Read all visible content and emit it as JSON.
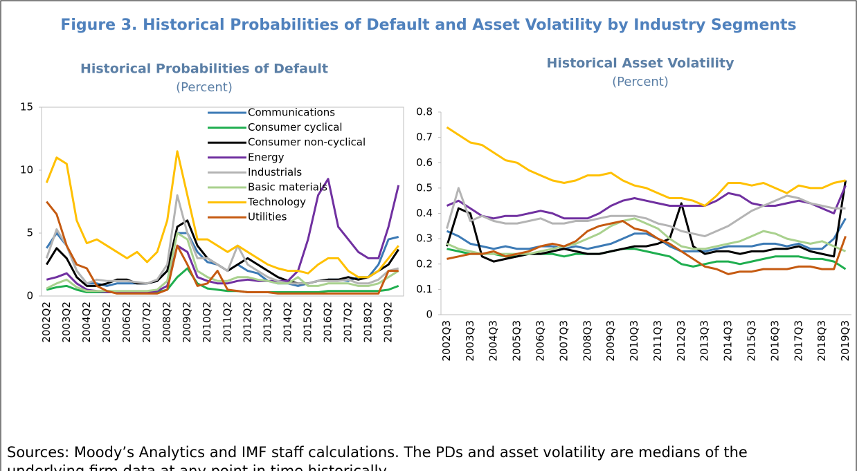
{
  "figure_title": "Figure 3. Historical Probabilities of Default and Asset Volatility by Industry Segments",
  "source": [
    "Sources: Moody’s Analytics and IMF staff calculations. The PDs and asset volatility are medians of the",
    "underlying firm data at any point in time historically."
  ],
  "chart_data": [
    {
      "type": "line",
      "title": "Historical Probabilities of Default",
      "subtitle": "(Percent)",
      "categories": [
        "2002Q2",
        null,
        "2003Q2",
        null,
        "2004Q2",
        null,
        "2005Q2",
        null,
        "2006Q2",
        null,
        "2007Q2",
        null,
        "2008Q2",
        null,
        "2009Q2",
        null,
        "2010Q2",
        null,
        "2011Q2",
        null,
        "2012Q2",
        null,
        "2013Q2",
        null,
        "2014Q2",
        null,
        "2015Q2",
        null,
        "2016Q2",
        null,
        "2017Q2",
        null,
        "2018Q2",
        null,
        "2019Q2",
        null
      ],
      "ylim": [
        0,
        15
      ],
      "yticks": [
        0,
        5,
        10,
        15
      ],
      "legend": "top",
      "frame": true,
      "series": [
        {
          "name": "Communications",
          "color": "#3c7ab5",
          "values": [
            3.8,
            5,
            4,
            2,
            1,
            1,
            0.8,
            1,
            1,
            1,
            1,
            1.2,
            2,
            5,
            5,
            3.5,
            2.7,
            2.5,
            2,
            2.5,
            2,
            1.8,
            1.2,
            1,
            1,
            0.8,
            1,
            1.2,
            1.3,
            1.3,
            1.2,
            1.5,
            1.5,
            2.5,
            4.5,
            4.7
          ]
        },
        {
          "name": "Consumer cyclical",
          "color": "#1fae4f",
          "values": [
            0.5,
            0.7,
            0.8,
            0.5,
            0.3,
            0.3,
            0.3,
            0.3,
            0.3,
            0.3,
            0.3,
            0.3,
            0.5,
            1.5,
            2.2,
            1,
            0.6,
            0.5,
            0.4,
            0.4,
            0.3,
            0.3,
            0.3,
            0.3,
            0.3,
            0.3,
            0.3,
            0.3,
            0.4,
            0.4,
            0.4,
            0.4,
            0.4,
            0.4,
            0.5,
            0.8
          ]
        },
        {
          "name": "Consumer non-cyclical",
          "color": "#000000",
          "values": [
            2.5,
            3.8,
            3,
            1.5,
            0.8,
            0.8,
            1,
            1.3,
            1.3,
            1,
            1,
            1.2,
            2,
            5.5,
            6,
            4,
            3,
            2.5,
            2,
            2.5,
            3,
            2.5,
            2,
            1.5,
            1.2,
            1,
            1,
            1.2,
            1.3,
            1.3,
            1.5,
            1.3,
            1.5,
            2,
            2.5,
            3.7
          ]
        },
        {
          "name": "Energy",
          "color": "#7030a0",
          "values": [
            1.3,
            1.5,
            1.8,
            1,
            0.5,
            0.4,
            0.3,
            0.3,
            0.3,
            0.3,
            0.3,
            0.4,
            0.8,
            4,
            3.5,
            1.5,
            1.2,
            1,
            1,
            1.2,
            1.3,
            1.2,
            1.2,
            1.2,
            1.2,
            2,
            4.5,
            8,
            9.3,
            5.5,
            4.5,
            3.5,
            3,
            3,
            5.5,
            8.8
          ]
        },
        {
          "name": "Industrials",
          "color": "#b4b4b4",
          "values": [
            3,
            5.3,
            4,
            2,
            1,
            1.3,
            1.2,
            1.2,
            1.2,
            1.1,
            1,
            1.3,
            2.5,
            8,
            5,
            3,
            3,
            2.5,
            2,
            4,
            2.5,
            2,
            1.5,
            1.2,
            1,
            1,
            1,
            1.2,
            1.2,
            1.2,
            1.3,
            1,
            1,
            1.3,
            2,
            2.2
          ]
        },
        {
          "name": "Basic materials",
          "color": "#a9d18e",
          "values": [
            0.6,
            1,
            1.3,
            0.7,
            0.4,
            0.4,
            0.4,
            0.4,
            0.4,
            0.4,
            0.4,
            0.5,
            1.2,
            5,
            4.5,
            2,
            1.5,
            1.2,
            1.2,
            1.5,
            1.5,
            1.3,
            1.2,
            1,
            1,
            1.5,
            0.8,
            0.8,
            1,
            1,
            1,
            0.8,
            0.8,
            1,
            1.5,
            2
          ]
        },
        {
          "name": "Technology",
          "color": "#ffc000",
          "values": [
            9,
            11,
            10.5,
            6,
            4.2,
            4.5,
            4,
            3.5,
            3,
            3.5,
            2.7,
            3.5,
            6,
            11.5,
            8,
            4.5,
            4.5,
            4,
            3.5,
            4,
            3.5,
            3,
            2.5,
            2.2,
            2,
            2,
            1.8,
            2.5,
            3,
            3,
            2,
            1.5,
            1.5,
            2,
            3,
            4
          ]
        },
        {
          "name": "Utilities",
          "color": "#c55a11",
          "values": [
            7.5,
            6.5,
            4,
            2.5,
            2.2,
            0.8,
            0.4,
            0.2,
            0.2,
            0.2,
            0.2,
            0.2,
            0.5,
            4,
            2.5,
            0.8,
            1,
            2,
            0.5,
            0.4,
            0.3,
            0.3,
            0.3,
            0.2,
            0.2,
            0.2,
            0.2,
            0.2,
            0.2,
            0.2,
            0.2,
            0.2,
            0.2,
            0.2,
            2,
            2
          ]
        }
      ]
    },
    {
      "type": "line",
      "title": "Historical Asset Volatility",
      "subtitle": "(Percent)",
      "categories": [
        "2002Q3",
        null,
        "2003Q3",
        null,
        "2004Q3",
        null,
        "2005Q3",
        null,
        "2006Q3",
        null,
        "2007Q3",
        null,
        "2008Q3",
        null,
        "2009Q3",
        null,
        "2010Q3",
        null,
        "2011Q3",
        null,
        "2012Q3",
        null,
        "2013Q3",
        null,
        "2014Q3",
        null,
        "2015Q3",
        null,
        "2016Q3",
        null,
        "2017Q3",
        null,
        "2018Q3",
        null,
        "2019Q3"
      ],
      "ylim": [
        0,
        0.8
      ],
      "yticks": [
        0,
        0.1,
        0.2,
        0.3,
        0.4,
        0.5,
        0.6,
        0.7,
        0.8
      ],
      "frame": false,
      "series": [
        {
          "color": "#3c7ab5",
          "values": [
            0.33,
            0.31,
            0.28,
            0.27,
            0.26,
            0.27,
            0.26,
            0.26,
            0.27,
            0.27,
            0.26,
            0.27,
            0.26,
            0.27,
            0.28,
            0.3,
            0.32,
            0.32,
            0.3,
            0.27,
            0.25,
            0.25,
            0.25,
            0.26,
            0.27,
            0.27,
            0.27,
            0.28,
            0.28,
            0.27,
            0.28,
            0.26,
            0.26,
            0.3,
            0.38
          ]
        },
        {
          "color": "#1fae4f",
          "values": [
            0.26,
            0.25,
            0.24,
            0.24,
            0.24,
            0.23,
            0.23,
            0.24,
            0.24,
            0.24,
            0.23,
            0.24,
            0.24,
            0.24,
            0.25,
            0.26,
            0.26,
            0.25,
            0.24,
            0.23,
            0.2,
            0.19,
            0.2,
            0.21,
            0.21,
            0.2,
            0.21,
            0.22,
            0.23,
            0.23,
            0.23,
            0.22,
            0.22,
            0.21,
            0.18
          ]
        },
        {
          "color": "#000000",
          "values": [
            0.27,
            0.42,
            0.4,
            0.23,
            0.21,
            0.22,
            0.23,
            0.24,
            0.24,
            0.25,
            0.26,
            0.25,
            0.24,
            0.24,
            0.25,
            0.26,
            0.27,
            0.27,
            0.28,
            0.3,
            0.44,
            0.27,
            0.24,
            0.25,
            0.25,
            0.24,
            0.25,
            0.25,
            0.26,
            0.26,
            0.27,
            0.25,
            0.24,
            0.23,
            0.53
          ]
        },
        {
          "color": "#7030a0",
          "values": [
            0.43,
            0.45,
            0.42,
            0.39,
            0.38,
            0.39,
            0.39,
            0.4,
            0.41,
            0.4,
            0.38,
            0.38,
            0.38,
            0.4,
            0.43,
            0.45,
            0.46,
            0.45,
            0.44,
            0.43,
            0.43,
            0.43,
            0.43,
            0.45,
            0.48,
            0.47,
            0.44,
            0.43,
            0.43,
            0.44,
            0.45,
            0.44,
            0.42,
            0.4,
            0.51
          ]
        },
        {
          "color": "#b4b4b4",
          "values": [
            0.34,
            0.5,
            0.37,
            0.39,
            0.37,
            0.36,
            0.36,
            0.37,
            0.38,
            0.36,
            0.36,
            0.37,
            0.37,
            0.38,
            0.39,
            0.39,
            0.39,
            0.38,
            0.36,
            0.35,
            0.33,
            0.32,
            0.31,
            0.33,
            0.35,
            0.38,
            0.41,
            0.43,
            0.45,
            0.47,
            0.46,
            0.44,
            0.43,
            0.42,
            0.42
          ]
        },
        {
          "color": "#a9d18e",
          "values": [
            0.28,
            0.26,
            0.25,
            0.24,
            0.24,
            0.24,
            0.24,
            0.24,
            0.25,
            0.26,
            0.27,
            0.28,
            0.3,
            0.32,
            0.35,
            0.37,
            0.38,
            0.36,
            0.34,
            0.3,
            0.27,
            0.26,
            0.26,
            0.27,
            0.28,
            0.29,
            0.31,
            0.33,
            0.32,
            0.3,
            0.29,
            0.28,
            0.29,
            0.27,
            0.25
          ]
        },
        {
          "color": "#ffc000",
          "values": [
            0.74,
            0.71,
            0.68,
            0.67,
            0.64,
            0.61,
            0.6,
            0.57,
            0.55,
            0.53,
            0.52,
            0.53,
            0.55,
            0.55,
            0.56,
            0.53,
            0.51,
            0.5,
            0.48,
            0.46,
            0.46,
            0.45,
            0.43,
            0.47,
            0.52,
            0.52,
            0.51,
            0.52,
            0.5,
            0.48,
            0.51,
            0.5,
            0.5,
            0.52,
            0.53
          ]
        },
        {
          "color": "#c55a11",
          "values": [
            0.22,
            0.23,
            0.24,
            0.24,
            0.25,
            0.23,
            0.24,
            0.25,
            0.27,
            0.28,
            0.27,
            0.29,
            0.33,
            0.35,
            0.36,
            0.37,
            0.34,
            0.33,
            0.3,
            0.28,
            0.25,
            0.22,
            0.19,
            0.18,
            0.16,
            0.17,
            0.17,
            0.18,
            0.18,
            0.18,
            0.19,
            0.19,
            0.18,
            0.18,
            0.31
          ]
        }
      ]
    }
  ]
}
